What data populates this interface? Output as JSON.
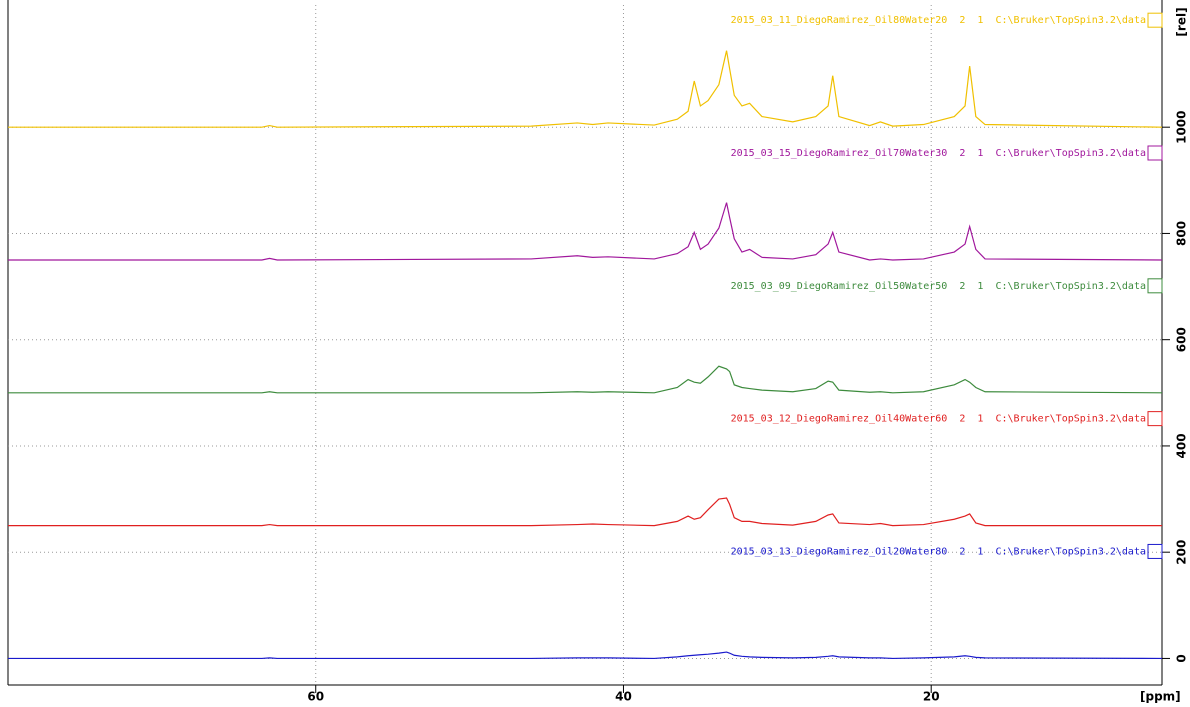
{
  "chart_data": {
    "type": "line",
    "x_label": "[ppm]",
    "y_label": "[rel]",
    "x": [
      80,
      63.5,
      63,
      62.5,
      46,
      43,
      42,
      41,
      38,
      36.5,
      35.8,
      35.4,
      35,
      34.5,
      33.8,
      33.3,
      33.1,
      32.8,
      32.3,
      31.8,
      31,
      29,
      27.5,
      26.7,
      26.4,
      26,
      24,
      23.3,
      22.5,
      20.5,
      18.5,
      17.8,
      17.5,
      17.1,
      16.5,
      5
    ],
    "series": [
      {
        "name": "2015_03_11_DiegoRamirez_Oil80Water20  2  1  C:\\Bruker\\TopSpin3.2\\data",
        "color": "#f0c000",
        "values": [
          1000,
          1000,
          1003,
          1000,
          1002,
          1008,
          1005,
          1008,
          1004,
          1015,
          1030,
          1087,
          1040,
          1050,
          1080,
          1144,
          1110,
          1060,
          1040,
          1045,
          1020,
          1010,
          1020,
          1040,
          1097,
          1020,
          1003,
          1010,
          1002,
          1005,
          1020,
          1040,
          1115,
          1020,
          1005,
          1000
        ]
      },
      {
        "name": "2015_03_15_DiegoRamirez_Oil70Water30  2  1  C:\\Bruker\\TopSpin3.2\\data",
        "color": "#a0179c",
        "values": [
          750,
          750,
          753,
          750,
          752,
          758,
          755,
          756,
          752,
          762,
          775,
          802,
          770,
          780,
          810,
          858,
          830,
          790,
          765,
          770,
          755,
          752,
          760,
          780,
          802,
          765,
          750,
          752,
          750,
          752,
          765,
          780,
          813,
          770,
          752,
          750
        ]
      },
      {
        "name": "2015_03_09_DiegoRamirez_Oil50Water50  2  1  C:\\Bruker\\TopSpin3.2\\data",
        "color": "#3d8b3d",
        "values": [
          500,
          500,
          502,
          500,
          500,
          502,
          501,
          502,
          500,
          510,
          525,
          520,
          518,
          530,
          550,
          545,
          540,
          515,
          510,
          508,
          505,
          502,
          508,
          522,
          520,
          505,
          501,
          502,
          500,
          502,
          515,
          525,
          520,
          510,
          502,
          500
        ]
      },
      {
        "name": "2015_03_12_DiegoRamirez_Oil40Water60  2  1  C:\\Bruker\\TopSpin3.2\\data",
        "color": "#e02020",
        "values": [
          250,
          250,
          252,
          250,
          250,
          252,
          253,
          252,
          250,
          258,
          268,
          262,
          265,
          280,
          300,
          302,
          290,
          265,
          258,
          258,
          254,
          251,
          258,
          270,
          272,
          255,
          252,
          254,
          250,
          252,
          262,
          268,
          272,
          255,
          250,
          250
        ]
      },
      {
        "name": "2015_03_13_DiegoRamirez_Oil20Water80  2  1  C:\\Bruker\\TopSpin3.2\\data",
        "color": "#1a1acc",
        "values": [
          0,
          0,
          1,
          0,
          0,
          1,
          1,
          1,
          0,
          3,
          5,
          6,
          7,
          8,
          10,
          12,
          10,
          6,
          4,
          3,
          2,
          1,
          2,
          4,
          5,
          3,
          1,
          1,
          0,
          1,
          3,
          5,
          4,
          2,
          1,
          0
        ]
      }
    ],
    "xlim": [
      80,
      5
    ],
    "xticks": [
      60,
      40,
      20
    ],
    "ylim": [
      -50,
      1230
    ],
    "yticks": [
      0,
      200,
      400,
      600,
      800,
      1000
    ],
    "grid": true
  }
}
